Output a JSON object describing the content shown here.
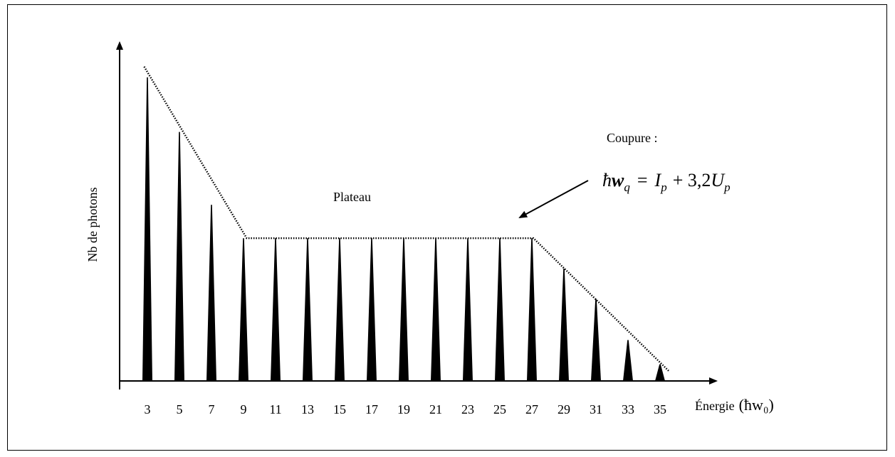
{
  "chart_data": {
    "type": "bar",
    "xlabel": "Énergie",
    "xlabel_unit": "(ħw₀)",
    "ylabel": "Nb de photons",
    "categories": [
      "3",
      "5",
      "7",
      "9",
      "11",
      "13",
      "15",
      "17",
      "19",
      "21",
      "23",
      "25",
      "27",
      "29",
      "31",
      "33",
      "35"
    ],
    "values": [
      1.0,
      0.82,
      0.58,
      0.47,
      0.47,
      0.47,
      0.47,
      0.47,
      0.47,
      0.47,
      0.47,
      0.47,
      0.47,
      0.37,
      0.27,
      0.135,
      0.055
    ],
    "ylim": [
      0,
      1.1
    ],
    "grid": false,
    "annotations": {
      "plateau": "Plateau",
      "cutoff_title": "Coupure :",
      "cutoff_formula": {
        "lhs_hbar": "ħ",
        "lhs_w": "w",
        "lhs_sub": "q",
        "eq": "=",
        "I": "I",
        "I_sub": "p",
        "plus_const": "+ 3,2",
        "U": "U",
        "U_sub": "p"
      }
    },
    "envelope": {
      "points": [
        {
          "x": 2.8,
          "y": 1.035
        },
        {
          "x": 9.2,
          "y": 0.47
        },
        {
          "x": 27.1,
          "y": 0.47
        },
        {
          "x": 35.6,
          "y": 0.03
        }
      ]
    },
    "colors": {
      "bars": "#000000",
      "axis": "#000000"
    }
  }
}
